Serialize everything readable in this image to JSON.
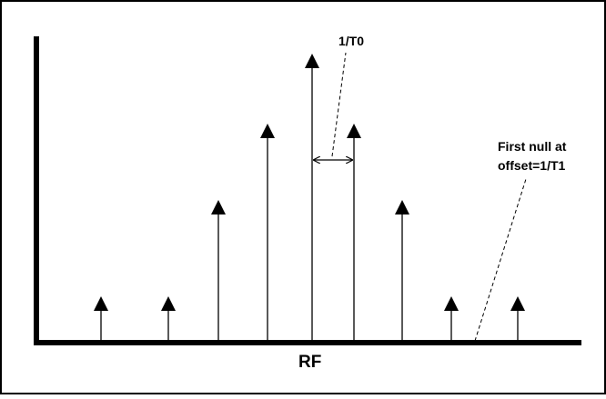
{
  "labels": {
    "period": "1/T0",
    "null_line1": "First null at",
    "null_line2": "offset=1/T1",
    "axis": "RF"
  }
}
